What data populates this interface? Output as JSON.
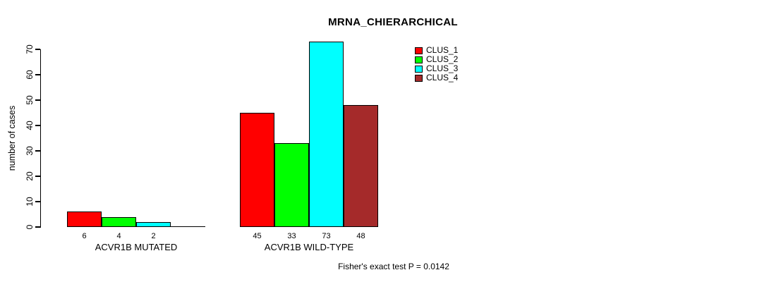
{
  "chart_data": {
    "type": "bar",
    "title": "MRNA_CHIERARCHICAL",
    "ylabel": "number of cases",
    "xlabel": "",
    "ylim": [
      0,
      70
    ],
    "yticks": [
      0,
      10,
      20,
      30,
      40,
      50,
      60,
      70
    ],
    "grid": false,
    "legend_position": "top-right",
    "series": [
      {
        "name": "CLUS_1",
        "color": "#FF0000"
      },
      {
        "name": "CLUS_2",
        "color": "#00FF00"
      },
      {
        "name": "CLUS_3",
        "color": "#00FFFF"
      },
      {
        "name": "CLUS_4",
        "color": "#A52A2A"
      }
    ],
    "categories": [
      "ACVR1B MUTATED",
      "ACVR1B WILD-TYPE"
    ],
    "groups": [
      {
        "label": "ACVR1B MUTATED",
        "values": [
          6,
          4,
          2,
          0
        ],
        "bar_labels": [
          "6",
          "4",
          "2",
          ""
        ]
      },
      {
        "label": "ACVR1B WILD-TYPE",
        "values": [
          45,
          33,
          73,
          48
        ],
        "bar_labels": [
          "45",
          "33",
          "73",
          "48"
        ]
      }
    ],
    "annotation": "Fisher's exact test P = 0.0142"
  }
}
